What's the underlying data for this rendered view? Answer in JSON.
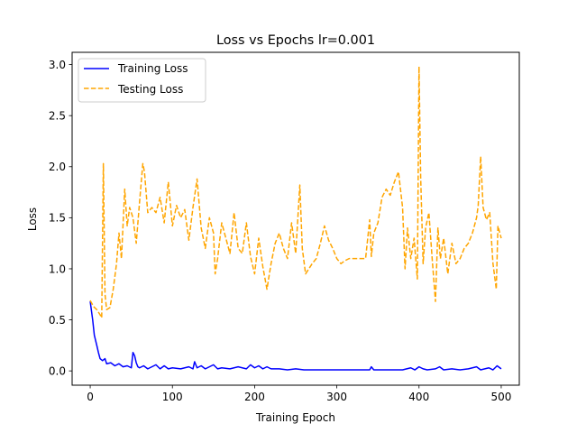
{
  "chart_data": {
    "type": "line",
    "title": "Loss vs Epochs lr=0.001",
    "xlabel": "Training Epoch",
    "ylabel": "Loss",
    "xlim": [
      -22,
      522
    ],
    "ylim": [
      -0.14,
      3.12
    ],
    "xticks": [
      0,
      100,
      200,
      300,
      400,
      500
    ],
    "yticks": [
      0.0,
      0.5,
      1.0,
      1.5,
      2.0,
      2.5,
      3.0
    ],
    "xtick_labels": [
      "0",
      "100",
      "200",
      "300",
      "400",
      "500"
    ],
    "ytick_labels": [
      "0.0",
      "0.5",
      "1.0",
      "1.5",
      "2.0",
      "2.5",
      "3.0"
    ],
    "grid": false,
    "legend_position": "top-left",
    "series": [
      {
        "name": "Training Loss",
        "color": "#0000ff",
        "style": "solid",
        "x": [
          0,
          3,
          5,
          8,
          10,
          12,
          15,
          18,
          20,
          25,
          30,
          35,
          40,
          45,
          50,
          52,
          54,
          56,
          58,
          60,
          65,
          70,
          75,
          80,
          85,
          90,
          95,
          100,
          110,
          120,
          125,
          127,
          130,
          135,
          140,
          145,
          150,
          155,
          160,
          170,
          180,
          190,
          195,
          200,
          205,
          210,
          215,
          220,
          230,
          240,
          250,
          260,
          270,
          280,
          290,
          300,
          310,
          320,
          330,
          340,
          342,
          345,
          350,
          360,
          370,
          380,
          390,
          395,
          400,
          405,
          410,
          420,
          425,
          430,
          440,
          450,
          460,
          470,
          475,
          480,
          485,
          490,
          495,
          500
        ],
        "y": [
          0.68,
          0.5,
          0.35,
          0.25,
          0.18,
          0.12,
          0.1,
          0.12,
          0.07,
          0.08,
          0.05,
          0.07,
          0.04,
          0.05,
          0.03,
          0.18,
          0.15,
          0.08,
          0.04,
          0.03,
          0.05,
          0.02,
          0.04,
          0.06,
          0.02,
          0.05,
          0.02,
          0.03,
          0.02,
          0.04,
          0.02,
          0.09,
          0.03,
          0.05,
          0.02,
          0.04,
          0.06,
          0.02,
          0.03,
          0.02,
          0.04,
          0.02,
          0.06,
          0.03,
          0.05,
          0.02,
          0.04,
          0.02,
          0.02,
          0.01,
          0.02,
          0.01,
          0.01,
          0.01,
          0.01,
          0.01,
          0.01,
          0.01,
          0.01,
          0.01,
          0.04,
          0.01,
          0.01,
          0.01,
          0.01,
          0.01,
          0.03,
          0.01,
          0.04,
          0.02,
          0.01,
          0.02,
          0.04,
          0.01,
          0.02,
          0.01,
          0.02,
          0.04,
          0.01,
          0.02,
          0.03,
          0.01,
          0.05,
          0.02
        ]
      },
      {
        "name": "Testing Loss",
        "color": "#ffa500",
        "style": "dashed",
        "x": [
          0,
          4,
          8,
          12,
          14,
          16,
          18,
          20,
          24,
          28,
          32,
          35,
          38,
          42,
          45,
          48,
          52,
          56,
          60,
          64,
          66,
          70,
          75,
          80,
          85,
          90,
          95,
          100,
          105,
          110,
          115,
          120,
          125,
          130,
          135,
          140,
          145,
          150,
          152,
          155,
          160,
          165,
          170,
          175,
          180,
          185,
          190,
          195,
          200,
          205,
          210,
          215,
          220,
          225,
          230,
          235,
          240,
          245,
          250,
          255,
          258,
          262,
          266,
          270,
          275,
          280,
          285,
          290,
          295,
          300,
          305,
          310,
          315,
          320,
          325,
          330,
          335,
          340,
          342,
          345,
          350,
          355,
          360,
          365,
          370,
          375,
          380,
          383,
          386,
          390,
          394,
          398,
          400,
          402,
          405,
          408,
          412,
          416,
          420,
          423,
          426,
          430,
          435,
          440,
          445,
          450,
          455,
          460,
          465,
          470,
          472,
          475,
          478,
          482,
          486,
          490,
          494,
          496,
          500
        ],
        "y": [
          0.69,
          0.63,
          0.6,
          0.55,
          0.52,
          2.03,
          0.75,
          0.6,
          0.62,
          0.8,
          1.05,
          1.35,
          1.1,
          1.78,
          1.42,
          1.6,
          1.5,
          1.25,
          1.65,
          2.03,
          1.95,
          1.55,
          1.6,
          1.55,
          1.7,
          1.45,
          1.85,
          1.42,
          1.62,
          1.5,
          1.58,
          1.28,
          1.6,
          1.88,
          1.4,
          1.2,
          1.5,
          1.35,
          0.95,
          1.1,
          1.45,
          1.3,
          1.15,
          1.55,
          1.2,
          1.15,
          1.45,
          1.12,
          0.95,
          1.3,
          1.02,
          0.8,
          1.05,
          1.25,
          1.35,
          1.2,
          1.1,
          1.45,
          1.15,
          1.82,
          1.2,
          0.95,
          1.0,
          1.05,
          1.1,
          1.25,
          1.42,
          1.28,
          1.2,
          1.1,
          1.05,
          1.08,
          1.1,
          1.1,
          1.1,
          1.1,
          1.1,
          1.48,
          1.12,
          1.35,
          1.45,
          1.7,
          1.78,
          1.72,
          1.85,
          1.95,
          1.6,
          1.0,
          1.4,
          1.1,
          1.3,
          0.9,
          2.98,
          1.9,
          1.05,
          1.4,
          1.55,
          1.1,
          0.68,
          1.4,
          1.1,
          1.3,
          0.95,
          1.25,
          1.05,
          1.1,
          1.2,
          1.25,
          1.35,
          1.5,
          1.62,
          2.1,
          1.6,
          1.48,
          1.55,
          1.05,
          0.8,
          1.42,
          1.3
        ]
      }
    ]
  }
}
